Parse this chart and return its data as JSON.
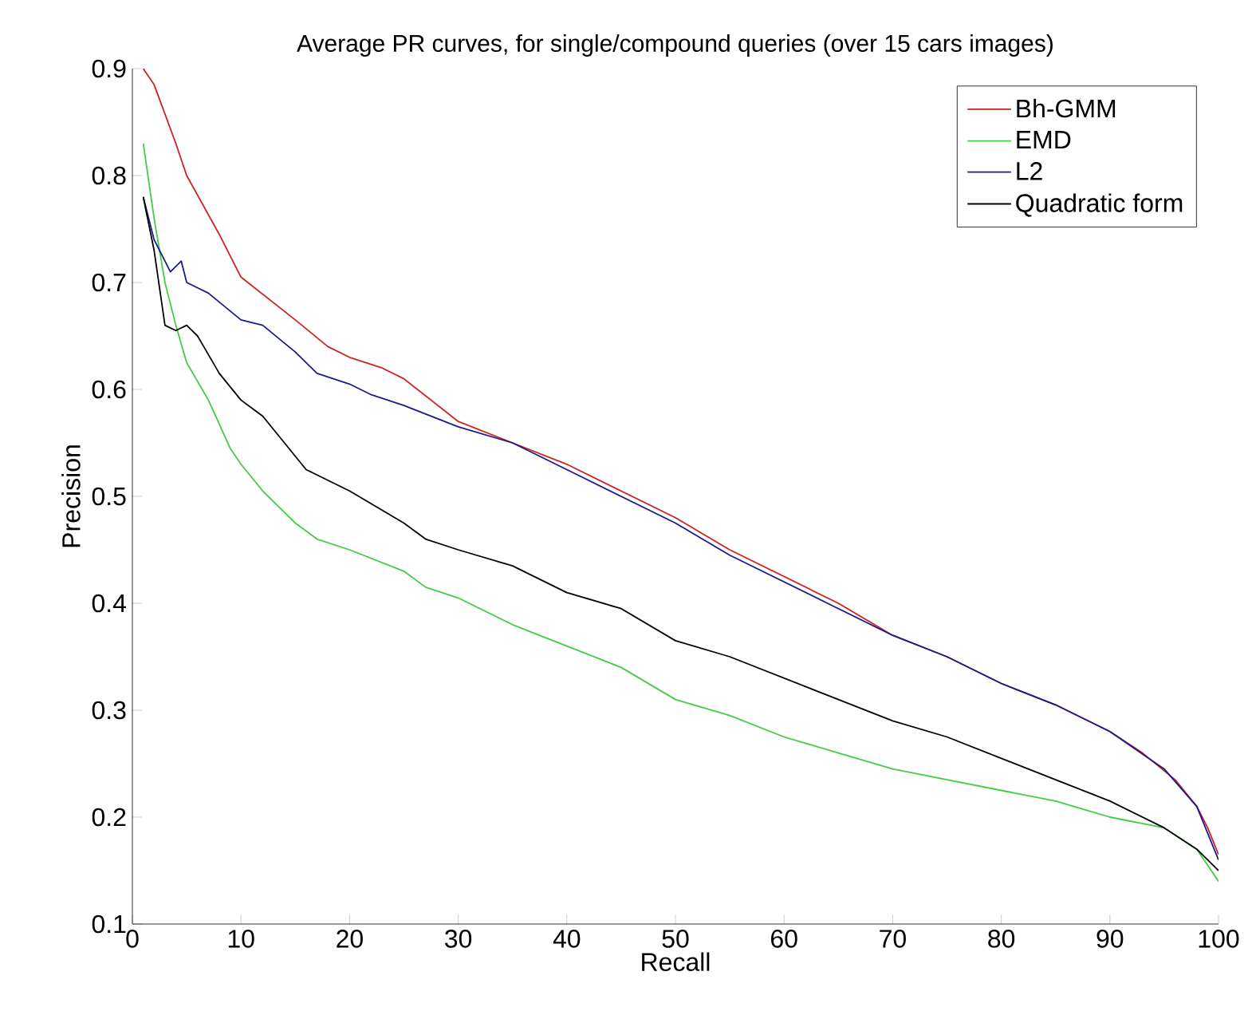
{
  "chart_data": {
    "type": "line",
    "title": "Average PR curves, for single/compound queries (over 15 cars images)",
    "xlabel": "Recall",
    "ylabel": "Precision",
    "xlim": [
      0,
      100
    ],
    "ylim": [
      0.1,
      0.9
    ],
    "xticks": [
      0,
      10,
      20,
      30,
      40,
      50,
      60,
      70,
      80,
      90,
      100
    ],
    "yticks": [
      0.1,
      0.2,
      0.3,
      0.4,
      0.5,
      0.6,
      0.7,
      0.8,
      0.9
    ],
    "legend": "top right",
    "grid": false,
    "marker": "none",
    "line_style": "solid",
    "series": [
      {
        "name": "Bh-GMM",
        "color": "#cc2222",
        "x": [
          1,
          2,
          4,
          5,
          8,
          10,
          15,
          18,
          20,
          23,
          25,
          30,
          35,
          40,
          45,
          50,
          55,
          60,
          65,
          70,
          75,
          80,
          85,
          90,
          93,
          96,
          98,
          99,
          100
        ],
        "values": [
          0.9,
          0.885,
          0.83,
          0.8,
          0.745,
          0.705,
          0.665,
          0.64,
          0.63,
          0.62,
          0.61,
          0.57,
          0.55,
          0.53,
          0.505,
          0.48,
          0.45,
          0.425,
          0.4,
          0.37,
          0.35,
          0.325,
          0.305,
          0.28,
          0.26,
          0.235,
          0.21,
          0.19,
          0.165
        ]
      },
      {
        "name": "EMD",
        "color": "#44cc44",
        "x": [
          1,
          2,
          3,
          4,
          5,
          7,
          9,
          10,
          12,
          15,
          17,
          20,
          25,
          27,
          30,
          35,
          40,
          45,
          50,
          55,
          60,
          65,
          70,
          75,
          80,
          85,
          90,
          95,
          98,
          100
        ],
        "values": [
          0.83,
          0.76,
          0.7,
          0.66,
          0.625,
          0.59,
          0.545,
          0.53,
          0.505,
          0.475,
          0.46,
          0.45,
          0.43,
          0.415,
          0.405,
          0.38,
          0.36,
          0.34,
          0.31,
          0.295,
          0.275,
          0.26,
          0.245,
          0.235,
          0.225,
          0.215,
          0.2,
          0.19,
          0.17,
          0.14
        ]
      },
      {
        "name": "L2",
        "color": "#1a1a8c",
        "x": [
          1,
          2,
          3,
          3.5,
          4.5,
          5,
          7,
          10,
          12,
          15,
          17,
          20,
          22,
          25,
          30,
          35,
          40,
          45,
          50,
          55,
          60,
          65,
          70,
          75,
          80,
          85,
          90,
          95,
          98,
          100
        ],
        "values": [
          0.78,
          0.74,
          0.72,
          0.71,
          0.72,
          0.7,
          0.69,
          0.665,
          0.66,
          0.635,
          0.615,
          0.605,
          0.595,
          0.585,
          0.565,
          0.55,
          0.525,
          0.5,
          0.475,
          0.445,
          0.42,
          0.395,
          0.37,
          0.35,
          0.325,
          0.305,
          0.28,
          0.245,
          0.21,
          0.16
        ]
      },
      {
        "name": "Quadratic form",
        "color": "#000000",
        "x": [
          1,
          2,
          3,
          4,
          5,
          6,
          8,
          10,
          12,
          14,
          16,
          20,
          25,
          27,
          30,
          35,
          40,
          45,
          50,
          55,
          60,
          65,
          70,
          75,
          80,
          85,
          90,
          95,
          98,
          100
        ],
        "values": [
          0.78,
          0.73,
          0.66,
          0.655,
          0.66,
          0.65,
          0.615,
          0.59,
          0.575,
          0.55,
          0.525,
          0.505,
          0.475,
          0.46,
          0.45,
          0.435,
          0.41,
          0.395,
          0.365,
          0.35,
          0.33,
          0.31,
          0.29,
          0.275,
          0.255,
          0.235,
          0.215,
          0.19,
          0.17,
          0.15
        ]
      }
    ]
  }
}
